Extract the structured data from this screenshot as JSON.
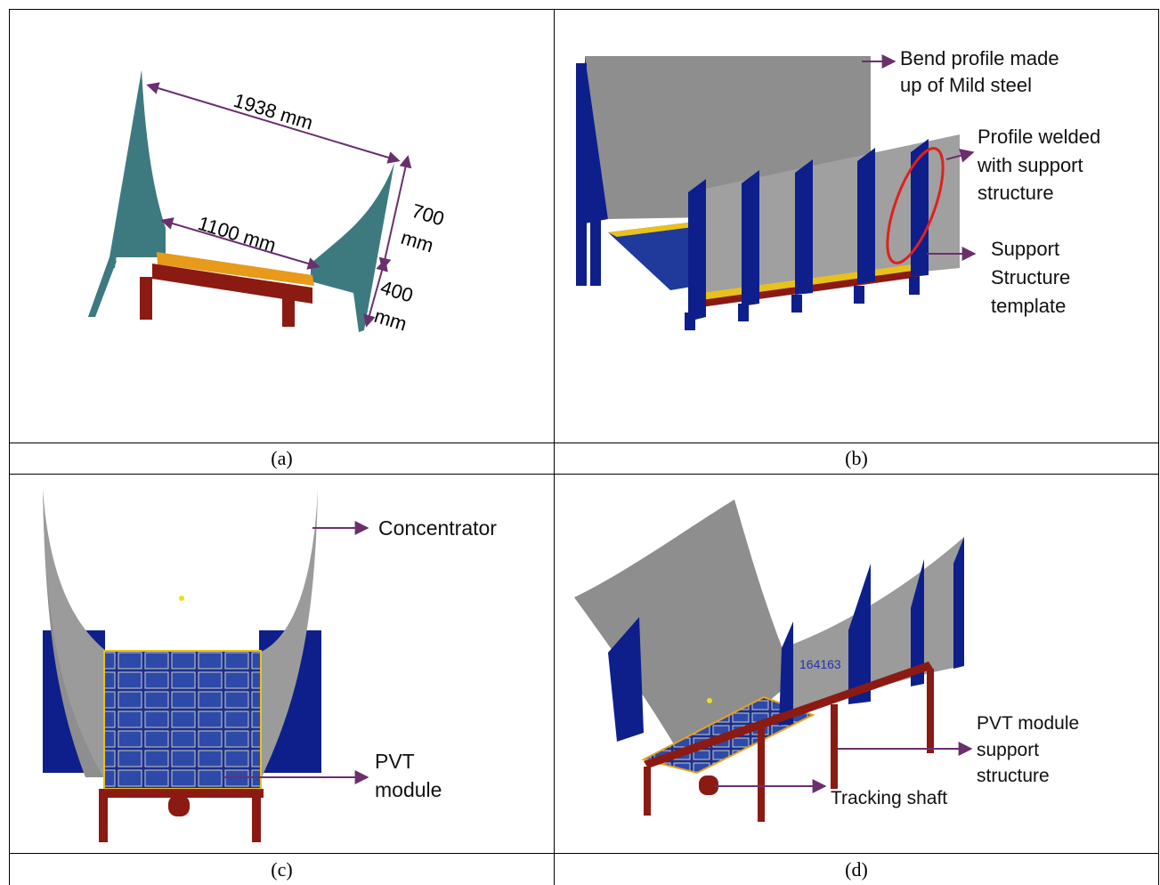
{
  "panels": [
    {
      "caption": "(a)",
      "dimensions": {
        "top_width": "1938 mm",
        "bottom_width": "1100 mm",
        "height_upper_1": "700",
        "height_upper_2": "mm",
        "height_lower_1": "400",
        "height_lower_2": "mm"
      }
    },
    {
      "caption": "(b)",
      "labels": {
        "bend_1": "Bend profile made",
        "bend_2": "up of Mild steel",
        "welded_1": "Profile welded",
        "welded_2": "with support",
        "welded_3": "structure",
        "support_1": "Support",
        "support_2": "Structure",
        "support_3": "template"
      }
    },
    {
      "caption": "(c)",
      "labels": {
        "concentrator": "Concentrator",
        "pvt_1": "PVT",
        "pvt_2": "module"
      }
    },
    {
      "caption": "(d)",
      "labels": {
        "pvt_support_1": "PVT module",
        "pvt_support_2": "support",
        "pvt_support_3": "structure",
        "tracking": "Tracking shaft",
        "part_number": "164163"
      }
    }
  ],
  "colors": {
    "arrow": "#6b2f6e",
    "teal": "#3d7a80",
    "steel": "#8e8e8e",
    "blue": "#0e1f8c",
    "red_frame": "#8b1a12",
    "highlight": "#e0201c"
  }
}
